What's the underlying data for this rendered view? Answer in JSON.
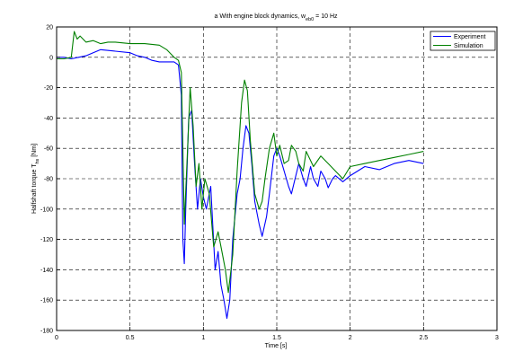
{
  "chart_data": {
    "type": "line",
    "title": "a With engine block dynamics, w",
    "title_subscript": "eb0",
    "title_suffix": " = 10 Hz",
    "xlabel": "Time [s]",
    "ylabel": "Halfshaft torque  T",
    "ylabel_subscript": "hs",
    "ylabel_suffix": " [Nm]",
    "xlim": [
      0,
      3
    ],
    "ylim": [
      -180,
      20
    ],
    "xticks": [
      0,
      0.5,
      1,
      1.5,
      2,
      2.5,
      3
    ],
    "xtick_labels": [
      "0",
      "0.5",
      "1",
      "1.5",
      "2",
      "2.5",
      "3"
    ],
    "yticks": [
      20,
      0,
      -20,
      -40,
      -60,
      -80,
      -100,
      -120,
      -140,
      -160,
      -180
    ],
    "ytick_labels": [
      "20",
      "0",
      "-20",
      "-40",
      "-60",
      "-80",
      "-100",
      "-120",
      "-140",
      "-160",
      "-180"
    ],
    "grid": true,
    "legend_position": "top-right",
    "series": [
      {
        "name": "Experiment",
        "color": "#0000ff",
        "x": [
          0,
          0.05,
          0.1,
          0.15,
          0.2,
          0.3,
          0.4,
          0.5,
          0.55,
          0.6,
          0.65,
          0.7,
          0.8,
          0.83,
          0.85,
          0.86,
          0.87,
          0.88,
          0.9,
          0.92,
          0.94,
          0.96,
          0.98,
          1.0,
          1.02,
          1.05,
          1.08,
          1.1,
          1.12,
          1.14,
          1.16,
          1.18,
          1.2,
          1.23,
          1.25,
          1.27,
          1.29,
          1.31,
          1.33,
          1.35,
          1.38,
          1.4,
          1.43,
          1.45,
          1.48,
          1.5,
          1.52,
          1.55,
          1.58,
          1.6,
          1.63,
          1.65,
          1.68,
          1.7,
          1.73,
          1.75,
          1.78,
          1.8,
          1.83,
          1.85,
          1.88,
          1.9,
          1.95,
          2.0,
          2.1,
          2.2,
          2.3,
          2.4,
          2.5
        ],
        "y": [
          0,
          0,
          -1,
          0,
          1,
          5,
          4,
          3,
          1,
          0,
          -2,
          -3,
          -3,
          -5,
          -25,
          -120,
          -136,
          -100,
          -40,
          -35,
          -70,
          -100,
          -80,
          -92,
          -100,
          -85,
          -140,
          -128,
          -150,
          -160,
          -172,
          -160,
          -120,
          -90,
          -80,
          -60,
          -45,
          -50,
          -70,
          -95,
          -110,
          -118,
          -105,
          -90,
          -65,
          -60,
          -65,
          -75,
          -85,
          -90,
          -78,
          -70,
          -80,
          -85,
          -72,
          -80,
          -85,
          -75,
          -80,
          -86,
          -80,
          -78,
          -82,
          -78,
          -72,
          -74,
          -70,
          -68,
          -70
        ]
      },
      {
        "name": "Simulation",
        "color": "#008000",
        "x": [
          0,
          0.05,
          0.1,
          0.12,
          0.14,
          0.16,
          0.2,
          0.25,
          0.3,
          0.35,
          0.4,
          0.5,
          0.6,
          0.7,
          0.75,
          0.8,
          0.83,
          0.85,
          0.86,
          0.87,
          0.89,
          0.91,
          0.93,
          0.95,
          0.97,
          0.99,
          1.01,
          1.04,
          1.07,
          1.1,
          1.13,
          1.15,
          1.17,
          1.2,
          1.23,
          1.26,
          1.28,
          1.3,
          1.32,
          1.35,
          1.38,
          1.4,
          1.42,
          1.45,
          1.48,
          1.5,
          1.52,
          1.55,
          1.58,
          1.6,
          1.63,
          1.65,
          1.68,
          1.7,
          1.73,
          1.75,
          1.8,
          1.85,
          1.9,
          1.95,
          2.0,
          2.1,
          2.2,
          2.3,
          2.4,
          2.5
        ],
        "y": [
          -1,
          -1,
          0,
          17,
          12,
          14,
          10,
          11,
          9,
          10,
          10,
          9,
          9,
          8,
          5,
          0,
          -2,
          -10,
          -60,
          -110,
          -65,
          -20,
          -45,
          -85,
          -70,
          -100,
          -80,
          -90,
          -125,
          -115,
          -130,
          -140,
          -155,
          -130,
          -75,
          -30,
          -15,
          -22,
          -55,
          -90,
          -100,
          -95,
          -80,
          -60,
          -50,
          -65,
          -58,
          -70,
          -68,
          -58,
          -62,
          -70,
          -75,
          -62,
          -68,
          -72,
          -65,
          -70,
          -75,
          -80,
          -72,
          -70,
          -68,
          -66,
          -64,
          -62
        ]
      }
    ]
  }
}
